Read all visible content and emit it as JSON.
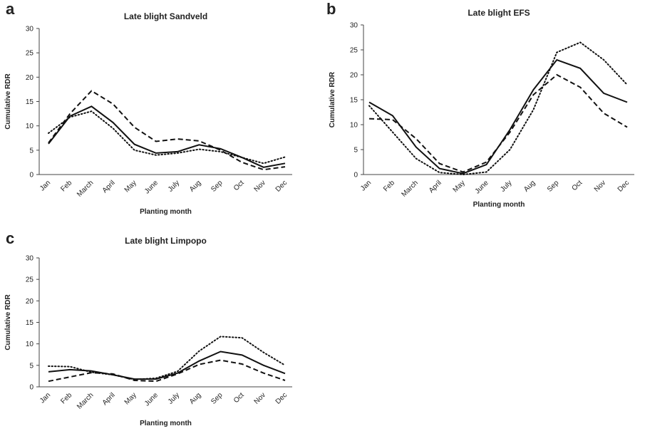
{
  "chart_data": [
    {
      "type": "line",
      "panel_label": "a",
      "title": "Late blight Sandveld",
      "x_label": "Planting month",
      "y_label": "Cumulative RDR",
      "categories": [
        "Jan",
        "Feb",
        "March",
        "April",
        "May",
        "June",
        "July",
        "Aug",
        "Sep",
        "Oct",
        "Nov",
        "Dec"
      ],
      "ylim": [
        0,
        30
      ],
      "yticks": [
        0,
        5,
        10,
        15,
        20,
        25,
        30
      ],
      "series": [
        {
          "color": "#111111",
          "dash": "solid",
          "values": [
            6.3,
            12,
            14,
            10.7,
            6.2,
            4.4,
            4.7,
            6.1,
            5.3,
            3.5,
            1.5,
            2.3
          ]
        },
        {
          "color": "#111111",
          "dash": "dashed",
          "values": [
            6.5,
            12.5,
            17.2,
            14.5,
            9.7,
            6.8,
            7.3,
            6.9,
            5,
            2.5,
            1,
            1.6
          ]
        },
        {
          "color": "#111111",
          "dash": "dotted",
          "values": [
            8.5,
            11.8,
            13,
            9.5,
            5,
            4,
            4.4,
            5.2,
            4.7,
            3.5,
            2.3,
            3.6
          ]
        }
      ]
    },
    {
      "type": "line",
      "panel_label": "b",
      "title": "Late blight EFS",
      "x_label": "Planting month",
      "y_label": "Cumulative RDR",
      "categories": [
        "Jan",
        "Feb",
        "March",
        "April",
        "May",
        "June",
        "July",
        "Aug",
        "Sep",
        "Oct",
        "Nov",
        "Dec"
      ],
      "ylim": [
        0,
        30
      ],
      "yticks": [
        0,
        5,
        10,
        15,
        20,
        25,
        30
      ],
      "series": [
        {
          "color": "#111111",
          "dash": "solid",
          "values": [
            14.5,
            11.8,
            5.5,
            1.2,
            0.2,
            2,
            9,
            17,
            23,
            21.3,
            16.3,
            14.5
          ]
        },
        {
          "color": "#111111",
          "dash": "dashed",
          "values": [
            11.2,
            11,
            7.2,
            2.2,
            0.5,
            2.5,
            8.5,
            16,
            20,
            17.5,
            12.3,
            9.5
          ]
        },
        {
          "color": "#111111",
          "dash": "dotted",
          "values": [
            13.8,
            8.5,
            3.2,
            0.4,
            0,
            0.5,
            5,
            13,
            24.5,
            26.5,
            23,
            18
          ]
        }
      ]
    },
    {
      "type": "line",
      "panel_label": "c",
      "title": "Late blight Limpopo",
      "x_label": "Planting month",
      "y_label": "Cumulative RDR",
      "categories": [
        "Jan",
        "Feb",
        "March",
        "April",
        "May",
        "June",
        "July",
        "Aug",
        "Sep",
        "Oct",
        "Nov",
        "Dec"
      ],
      "ylim": [
        0,
        30
      ],
      "yticks": [
        0,
        5,
        10,
        15,
        20,
        25,
        30
      ],
      "series": [
        {
          "color": "#111111",
          "dash": "solid",
          "values": [
            3.5,
            4,
            3.7,
            2.8,
            1.8,
            1.8,
            3.2,
            6,
            8.2,
            7.4,
            5,
            3.1
          ]
        },
        {
          "color": "#111111",
          "dash": "dashed",
          "values": [
            1.3,
            2.3,
            3.3,
            3,
            1.5,
            1.3,
            3,
            5.2,
            6.2,
            5.3,
            3.2,
            1.5
          ]
        },
        {
          "color": "#111111",
          "dash": "dotted",
          "values": [
            4.8,
            4.7,
            3.4,
            2.8,
            1.7,
            2,
            3.6,
            8.3,
            11.7,
            11.4,
            8,
            5
          ]
        }
      ]
    }
  ]
}
